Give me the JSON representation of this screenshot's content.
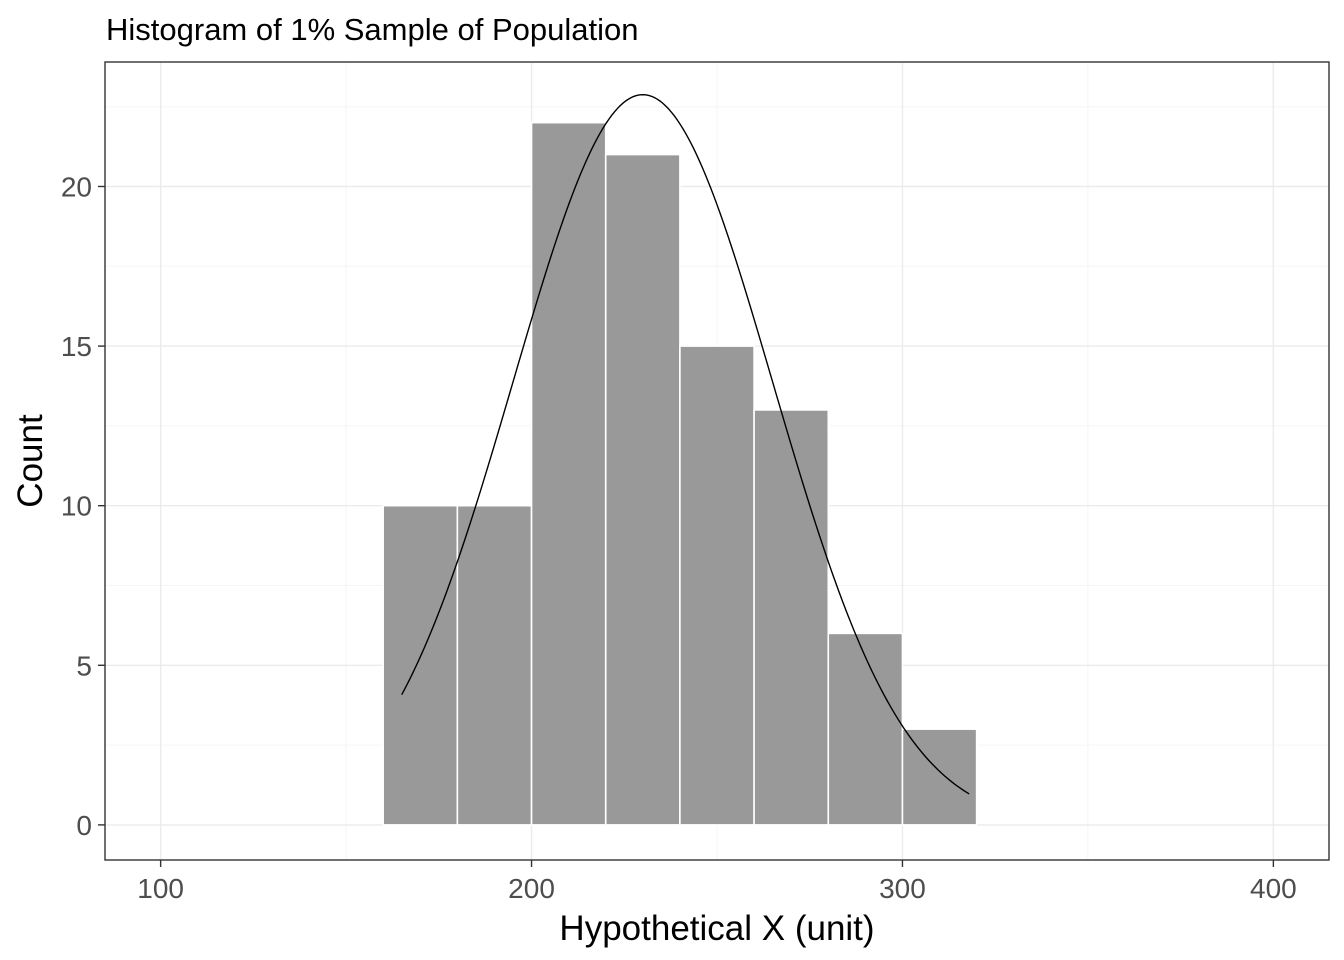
{
  "chart_data": {
    "type": "bar",
    "title": "Histogram of 1% Sample of Population",
    "xlabel": "Hypothetical X (unit)",
    "ylabel": "Count",
    "xlim": [
      85,
      415
    ],
    "ylim": [
      -1.1,
      23.9
    ],
    "x_ticks": [
      100,
      200,
      300,
      400
    ],
    "x_tick_labels": [
      "100",
      "200",
      "300",
      "400"
    ],
    "x_minor_ticks": [
      150,
      250,
      350
    ],
    "y_ticks": [
      0,
      5,
      10,
      15,
      20
    ],
    "y_tick_labels": [
      "0",
      "5",
      "10",
      "15",
      "20"
    ],
    "y_minor_ticks": [
      2.5,
      7.5,
      12.5,
      17.5,
      22.5
    ],
    "grid": true,
    "bins": [
      {
        "start": 160,
        "end": 180,
        "count": 10
      },
      {
        "start": 180,
        "end": 200,
        "count": 10
      },
      {
        "start": 200,
        "end": 220,
        "count": 22
      },
      {
        "start": 220,
        "end": 240,
        "count": 21
      },
      {
        "start": 240,
        "end": 260,
        "count": 15
      },
      {
        "start": 260,
        "end": 280,
        "count": 13
      },
      {
        "start": 280,
        "end": 300,
        "count": 6
      },
      {
        "start": 300,
        "end": 320,
        "count": 3
      }
    ],
    "density_curve": {
      "type": "normal",
      "mean": 230,
      "sd": 35,
      "scale": 2007,
      "x_range": [
        165,
        318
      ]
    },
    "colors": {
      "bar_fill": "#999999",
      "bar_stroke": "#ffffff",
      "curve": "#000000",
      "grid_major": "#ebebeb",
      "grid_minor": "#f5f5f5",
      "panel_border": "#333333",
      "axis_text": "#4d4d4d"
    }
  }
}
